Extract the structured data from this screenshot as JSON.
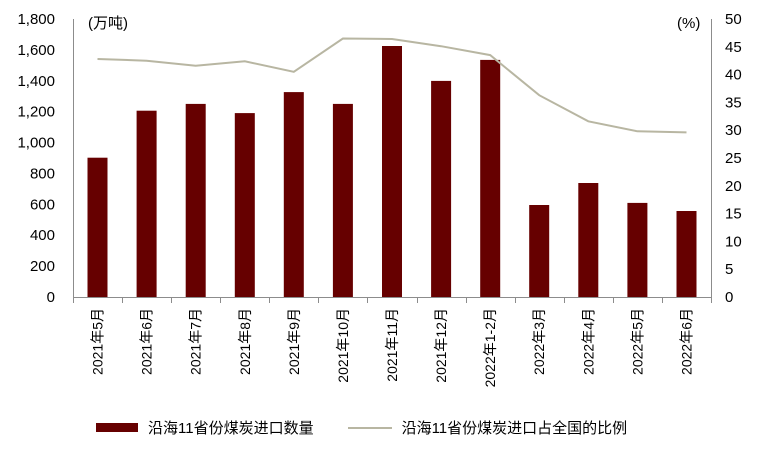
{
  "chart_data": {
    "type": "bar+line",
    "title": "",
    "categories": [
      "2021年5月",
      "2021年6月",
      "2021年7月",
      "2021年8月",
      "2021年9月",
      "2021年10月",
      "2021年11月",
      "2021年12月",
      "2022年1-2月",
      "2022年3月",
      "2022年4月",
      "2022年5月",
      "2022年6月"
    ],
    "series": [
      {
        "name": "沿海11省份煤炭进口数量",
        "type": "bar",
        "axis": "left",
        "color": "#660000",
        "values": [
          902,
          1206,
          1250,
          1191,
          1327,
          1250,
          1625,
          1399,
          1535,
          596,
          738,
          609,
          557
        ]
      },
      {
        "name": "沿海11省份煤炭进口占全国的比例",
        "type": "line",
        "axis": "right",
        "color": "#B8B6A2",
        "values": [
          42.8,
          42.5,
          41.6,
          42.4,
          40.5,
          46.5,
          46.4,
          45.1,
          43.5,
          36.3,
          31.6,
          29.8,
          29.6
        ]
      }
    ],
    "left_axis": {
      "label": "(万吨)",
      "ylim": [
        0,
        1800
      ],
      "ticks": [
        0,
        200,
        400,
        600,
        800,
        1000,
        1200,
        1400,
        1600,
        1800
      ],
      "tick_labels": [
        "0",
        "200",
        "400",
        "600",
        "800",
        "1,000",
        "1,200",
        "1,400",
        "1,600",
        "1,800"
      ]
    },
    "right_axis": {
      "label": "(%)",
      "ylim": [
        0,
        50
      ],
      "ticks": [
        0,
        5,
        10,
        15,
        20,
        25,
        30,
        35,
        40,
        45,
        50
      ],
      "tick_labels": [
        "0",
        "5",
        "10",
        "15",
        "20",
        "25",
        "30",
        "35",
        "40",
        "45",
        "50"
      ]
    },
    "xlabel": "",
    "grid": false,
    "legend_position": "bottom"
  },
  "legend": {
    "bar_label": "沿海11省份煤炭进口数量",
    "line_label": "沿海11省份煤炭进口占全国的比例"
  },
  "axis_titles": {
    "left": "(万吨)",
    "right": "(%)"
  }
}
